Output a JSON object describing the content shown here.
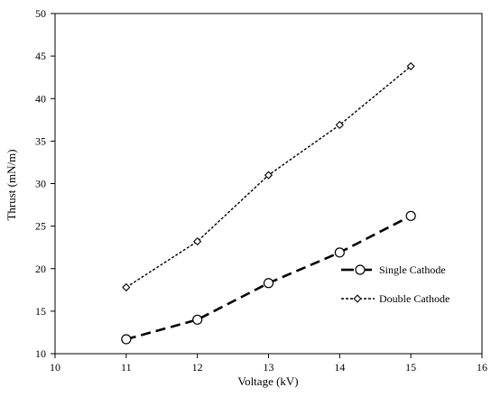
{
  "chart_data": {
    "type": "line",
    "title": "",
    "xlabel": "Voltage (kV)",
    "ylabel": "Thrust (mN/m)",
    "xlim": [
      10,
      16
    ],
    "ylim": [
      10,
      50
    ],
    "x_ticks": [
      "10",
      "11",
      "12",
      "13",
      "14",
      "15",
      "16"
    ],
    "y_ticks": [
      "10",
      "15",
      "20",
      "25",
      "30",
      "35",
      "40",
      "45",
      "50"
    ],
    "grid": false,
    "legend_position": "right",
    "series": [
      {
        "name": "Single Cathode",
        "x": [
          11,
          12,
          13,
          14,
          15
        ],
        "y": [
          11.7,
          14.0,
          18.3,
          21.9,
          26.2
        ],
        "marker": "circle",
        "line_style": "long-dash",
        "color": "#000000"
      },
      {
        "name": "Double Cathode",
        "x": [
          11,
          12,
          13,
          14,
          15
        ],
        "y": [
          17.8,
          23.2,
          31.0,
          36.9,
          43.8
        ],
        "marker": "diamond",
        "line_style": "short-dash",
        "color": "#000000"
      }
    ]
  }
}
